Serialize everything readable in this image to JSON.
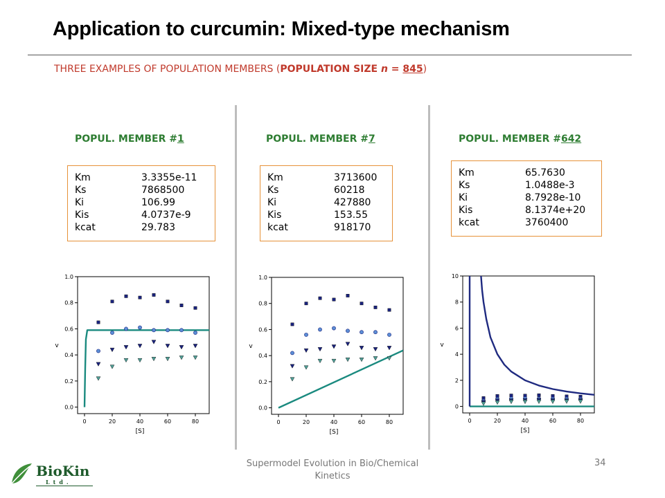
{
  "slide": {
    "title": "Application to curcumin: Mixed-type mechanism",
    "subtitle_pre": "THREE EXAMPLES OF POPULATION MEMBERS (",
    "subtitle_bold": "POPULATION SIZE ",
    "subtitle_n": "n",
    "subtitle_eq": " = ",
    "subtitle_num": "845",
    "subtitle_post": ")",
    "footer_line1": "Supermodel Evolution in Bio/Chemical",
    "footer_line2": "Kinetics",
    "page_number": "34"
  },
  "logo": {
    "name": "BioKin",
    "sub": "Ltd."
  },
  "colors": {
    "title": "#000000",
    "subtitle": "#c0392b",
    "member_heading": "#2e7d32",
    "box_border": "#e69138",
    "divider": "#bdbdbd",
    "fit_teal": "#1a8a7f",
    "fit_navy": "#1f2a80",
    "marker_navy": "#1a237e",
    "marker_blue": "#5c8fd6",
    "marker_teal": "#4f9e96"
  },
  "members": [
    {
      "heading_pre": "POPUL. MEMBER #",
      "heading_num": "1",
      "params": [
        {
          "name": "Km",
          "value": "3.3355e-11"
        },
        {
          "name": "Ks",
          "value": "7868500"
        },
        {
          "name": "Ki",
          "value": "106.99"
        },
        {
          "name": "Kis",
          "value": "4.0737e-9"
        },
        {
          "name": "kcat",
          "value": "29.783"
        }
      ]
    },
    {
      "heading_pre": "POPUL. MEMBER #",
      "heading_num": "7",
      "params": [
        {
          "name": "Km",
          "value": "3713600"
        },
        {
          "name": "Ks",
          "value": "60218"
        },
        {
          "name": "Ki",
          "value": "427880"
        },
        {
          "name": "Kis",
          "value": "153.55"
        },
        {
          "name": "kcat",
          "value": "918170"
        }
      ]
    },
    {
      "heading_pre": "POPUL. MEMBER #",
      "heading_num": "642",
      "params": [
        {
          "name": "Km",
          "value": "65.7630"
        },
        {
          "name": "Ks",
          "value": "1.0488e-3"
        },
        {
          "name": "Ki",
          "value": "8.7928e-10"
        },
        {
          "name": "Kis",
          "value": "8.1374e+20"
        },
        {
          "name": "kcat",
          "value": "3760400"
        }
      ]
    }
  ],
  "chart_data": [
    {
      "type": "scatter",
      "xlabel": "[S]",
      "ylabel": "v",
      "xlim": [
        -5,
        90
      ],
      "ylim": [
        -0.05,
        1.0
      ],
      "xticks": [
        0,
        20,
        40,
        60,
        80
      ],
      "yticks": [
        0.0,
        0.2,
        0.4,
        0.6,
        0.8,
        1.0
      ],
      "ytick_labels": [
        "0.0",
        "0.2",
        "0.4",
        "0.6",
        "0.8",
        "1.0"
      ],
      "marker_series": [
        {
          "marker": "square",
          "color": "#1a237e",
          "x": [
            10,
            20,
            30,
            40,
            50,
            60,
            70,
            80
          ],
          "y": [
            0.65,
            0.81,
            0.85,
            0.84,
            0.86,
            0.81,
            0.78,
            0.76
          ]
        },
        {
          "marker": "circle",
          "color": "#5c8fd6",
          "x": [
            10,
            20,
            30,
            40,
            50,
            60,
            70,
            80
          ],
          "y": [
            0.43,
            0.57,
            0.6,
            0.61,
            0.59,
            0.59,
            0.59,
            0.57
          ]
        },
        {
          "marker": "triangle",
          "color": "#1a237e",
          "x": [
            10,
            20,
            30,
            40,
            50,
            60,
            70,
            80
          ],
          "y": [
            0.33,
            0.44,
            0.46,
            0.47,
            0.5,
            0.47,
            0.46,
            0.47
          ]
        },
        {
          "marker": "triangle",
          "color": "#4f9e96",
          "x": [
            10,
            20,
            30,
            40,
            50,
            60,
            70,
            80
          ],
          "y": [
            0.22,
            0.31,
            0.36,
            0.36,
            0.37,
            0.37,
            0.38,
            0.38
          ]
        }
      ],
      "fit_lines": [
        {
          "color": "#1a8a7f",
          "x": [
            0,
            0.5,
            1,
            2,
            3,
            90
          ],
          "y": [
            0.0,
            0.3,
            0.52,
            0.59,
            0.59,
            0.59
          ]
        }
      ]
    },
    {
      "type": "scatter",
      "xlabel": "[S]",
      "ylabel": "v",
      "xlim": [
        -5,
        90
      ],
      "ylim": [
        -0.05,
        1.0
      ],
      "xticks": [
        0,
        20,
        40,
        60,
        80
      ],
      "yticks": [
        0.0,
        0.2,
        0.4,
        0.6,
        0.8,
        1.0
      ],
      "ytick_labels": [
        "0.0",
        "0.2",
        "0.4",
        "0.6",
        "0.8",
        "1.0"
      ],
      "marker_series": [
        {
          "marker": "square",
          "color": "#1a237e",
          "x": [
            10,
            20,
            30,
            40,
            50,
            60,
            70,
            80
          ],
          "y": [
            0.64,
            0.8,
            0.84,
            0.83,
            0.86,
            0.8,
            0.77,
            0.75
          ]
        },
        {
          "marker": "circle",
          "color": "#5c8fd6",
          "x": [
            10,
            20,
            30,
            40,
            50,
            60,
            70,
            80
          ],
          "y": [
            0.42,
            0.56,
            0.6,
            0.61,
            0.59,
            0.58,
            0.58,
            0.56
          ]
        },
        {
          "marker": "triangle",
          "color": "#1a237e",
          "x": [
            10,
            20,
            30,
            40,
            50,
            60,
            70,
            80
          ],
          "y": [
            0.32,
            0.44,
            0.45,
            0.47,
            0.49,
            0.46,
            0.45,
            0.46
          ]
        },
        {
          "marker": "triangle",
          "color": "#4f9e96",
          "x": [
            10,
            20,
            30,
            40,
            50,
            60,
            70,
            80
          ],
          "y": [
            0.22,
            0.31,
            0.36,
            0.36,
            0.37,
            0.37,
            0.38,
            0.38
          ]
        }
      ],
      "fit_lines": [
        {
          "color": "#1a8a7f",
          "x": [
            0,
            90
          ],
          "y": [
            0.0,
            0.44
          ]
        }
      ]
    },
    {
      "type": "scatter",
      "xlabel": "[S]",
      "ylabel": "v",
      "xlim": [
        -5,
        90
      ],
      "ylim": [
        -0.5,
        10
      ],
      "xticks": [
        0,
        20,
        40,
        60,
        80
      ],
      "yticks": [
        0,
        2,
        4,
        6,
        8,
        10
      ],
      "ytick_labels": [
        "0",
        "2",
        "4",
        "6",
        "8",
        "10"
      ],
      "marker_series": [
        {
          "marker": "square",
          "color": "#1a237e",
          "x": [
            10,
            20,
            30,
            40,
            50,
            60,
            70,
            80
          ],
          "y": [
            0.64,
            0.8,
            0.84,
            0.83,
            0.86,
            0.8,
            0.77,
            0.75
          ]
        },
        {
          "marker": "circle",
          "color": "#5c8fd6",
          "x": [
            10,
            20,
            30,
            40,
            50,
            60,
            70,
            80
          ],
          "y": [
            0.42,
            0.56,
            0.6,
            0.61,
            0.59,
            0.58,
            0.58,
            0.56
          ]
        },
        {
          "marker": "triangle",
          "color": "#1a237e",
          "x": [
            10,
            20,
            30,
            40,
            50,
            60,
            70,
            80
          ],
          "y": [
            0.32,
            0.44,
            0.45,
            0.47,
            0.49,
            0.46,
            0.45,
            0.46
          ]
        },
        {
          "marker": "triangle",
          "color": "#4f9e96",
          "x": [
            10,
            20,
            30,
            40,
            50,
            60,
            70,
            80
          ],
          "y": [
            0.22,
            0.31,
            0.36,
            0.36,
            0.37,
            0.37,
            0.38,
            0.38
          ]
        }
      ],
      "fit_lines": [
        {
          "color": "#1f2a80",
          "x": [
            8.2,
            9,
            10,
            12,
            15,
            20,
            25,
            30,
            40,
            50,
            60,
            70,
            80,
            90
          ],
          "y": [
            10,
            8.9,
            8.0,
            6.7,
            5.3,
            4.0,
            3.2,
            2.67,
            2.0,
            1.6,
            1.33,
            1.14,
            1.0,
            0.89
          ]
        },
        {
          "color": "#1a8a7f",
          "x": [
            0,
            90
          ],
          "y": [
            0.0,
            0.0
          ]
        },
        {
          "color": "#1f2a80",
          "x": [
            0,
            0
          ],
          "y": [
            0.0,
            10.0
          ]
        }
      ]
    }
  ]
}
